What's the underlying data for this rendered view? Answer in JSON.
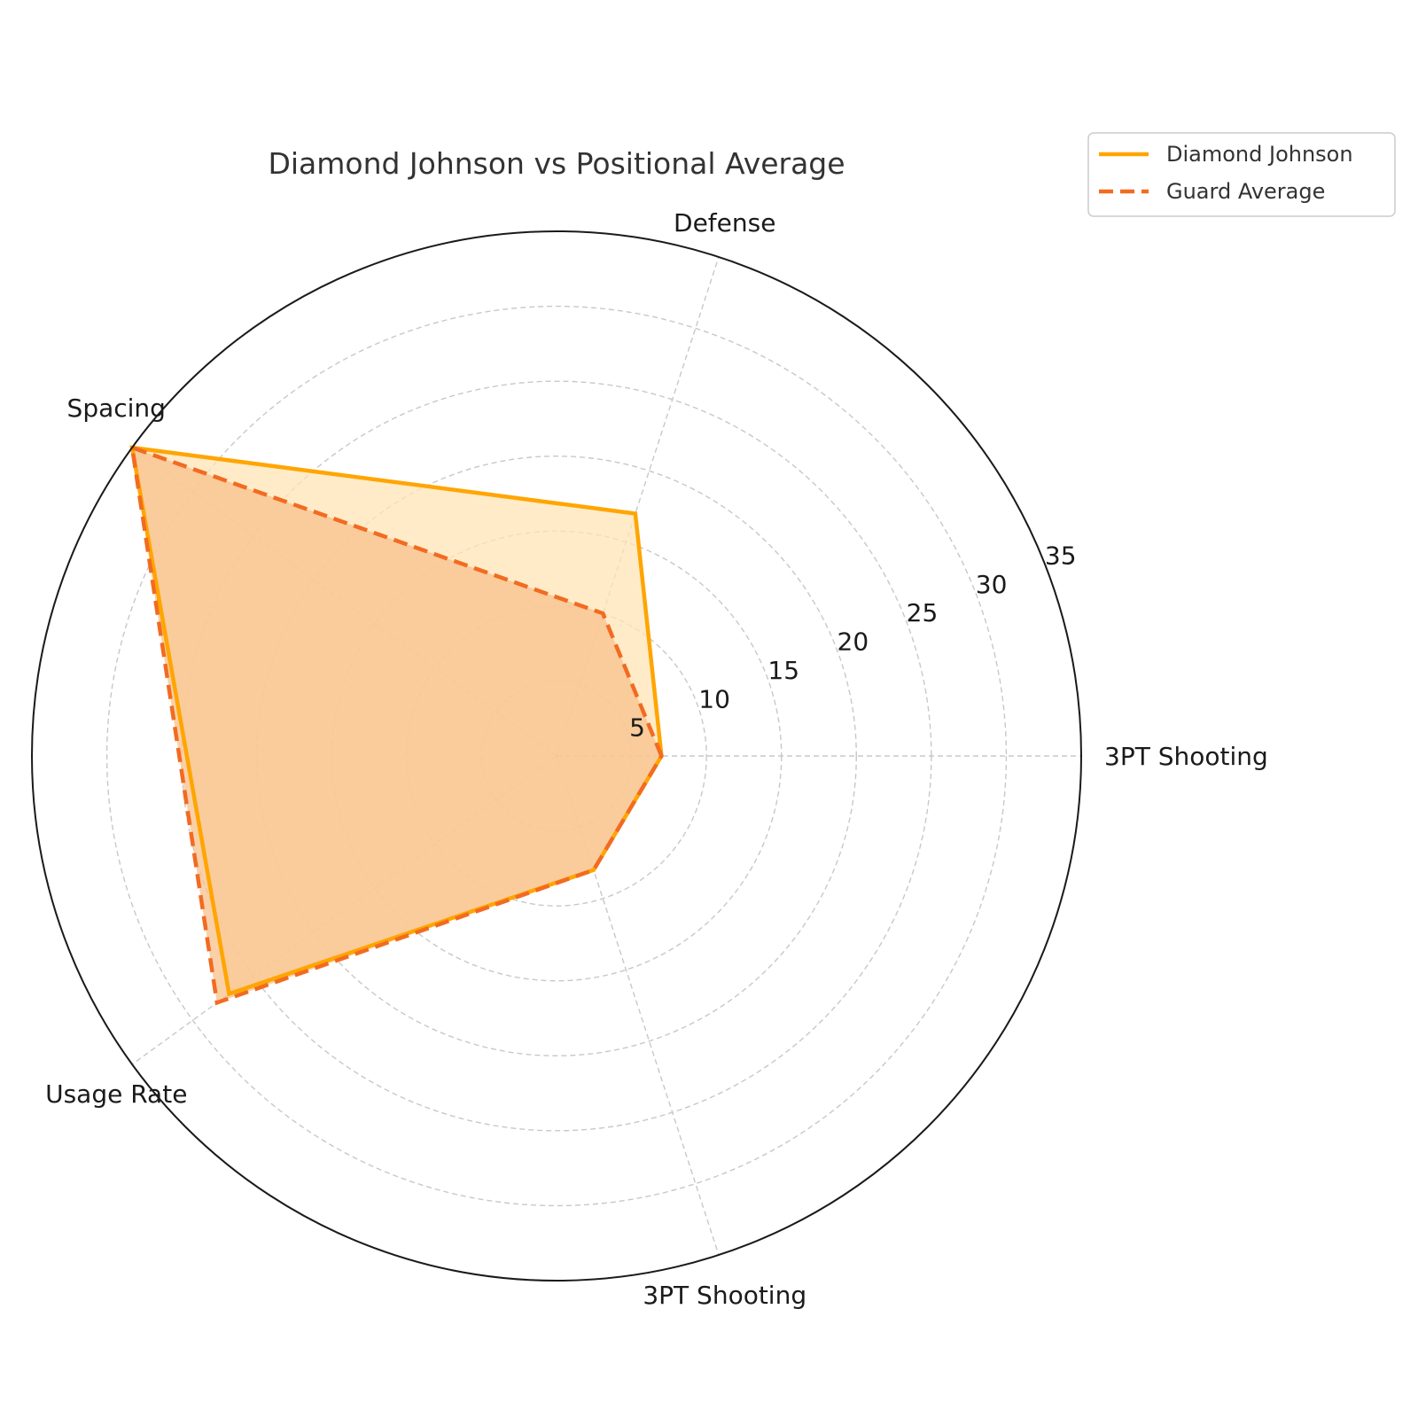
{
  "chart_data": {
    "type": "radar",
    "title": "Diamond Johnson vs Positional Average",
    "categories": [
      "3PT Shooting",
      "Defense",
      "Spacing",
      "Usage Rate",
      "3PT Shooting"
    ],
    "r_ticks": [
      5,
      10,
      15,
      20,
      25,
      30,
      35
    ],
    "rlim": [
      0,
      35
    ],
    "grid": true,
    "legend_position": "top-right, outside plot",
    "series": [
      {
        "name": "Diamond Johnson",
        "values": [
          7,
          17,
          35,
          27,
          8
        ],
        "color": "#FFA500",
        "line_style": "solid",
        "fill_color": "#FFE4B5"
      },
      {
        "name": "Guard Average",
        "values": [
          7,
          10,
          35,
          28,
          8
        ],
        "color": "#F26B21",
        "line_style": "dashed",
        "fill_color": "#F8C08C"
      }
    ]
  }
}
